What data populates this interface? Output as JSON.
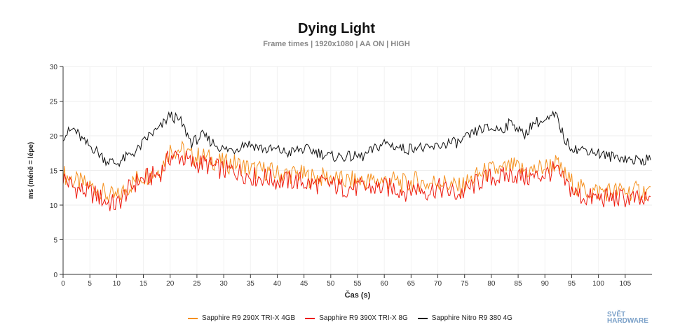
{
  "chart_data": {
    "type": "line",
    "title": "Dying Light",
    "subtitle": "Frame times | 1920x1080 | AA ON | HIGH",
    "xlabel": "Čas (s)",
    "ylabel": "ms (méně = lépe)",
    "xlim": [
      0,
      110
    ],
    "ylim": [
      0,
      30
    ],
    "xticks": [
      0,
      5,
      10,
      15,
      20,
      25,
      30,
      35,
      40,
      45,
      50,
      55,
      60,
      65,
      70,
      75,
      80,
      85,
      90,
      95,
      100,
      105
    ],
    "yticks": [
      0,
      5,
      10,
      15,
      20,
      25,
      30
    ],
    "grid": true,
    "legend_position": "bottom",
    "x": [
      0,
      2,
      4,
      6,
      8,
      10,
      12,
      14,
      16,
      18,
      20,
      22,
      24,
      26,
      28,
      30,
      32,
      34,
      36,
      38,
      40,
      42,
      44,
      46,
      48,
      50,
      52,
      54,
      56,
      58,
      60,
      62,
      64,
      66,
      68,
      70,
      72,
      74,
      76,
      78,
      80,
      82,
      84,
      86,
      88,
      90,
      92,
      94,
      96,
      98,
      100,
      102,
      104,
      106,
      108,
      110
    ],
    "series": [
      {
        "name": "Sapphire R9 290X TRI-X 4GB",
        "color": "#f5901e",
        "values": [
          14.5,
          13.5,
          13,
          12.5,
          11.5,
          11,
          12.5,
          14,
          14.5,
          15,
          18,
          18,
          17,
          17,
          16.5,
          16,
          16,
          15.5,
          15,
          15,
          14.5,
          14.5,
          14.5,
          14,
          14,
          14,
          13.5,
          13.5,
          13.5,
          13.5,
          13.5,
          13.5,
          13,
          13.5,
          13,
          13.5,
          13,
          12.5,
          13.5,
          14.5,
          15,
          15,
          15.5,
          15,
          15,
          15.5,
          16,
          14,
          12.5,
          12,
          12,
          12,
          12,
          12,
          12,
          12
        ]
      },
      {
        "name": "Sapphire R9 390X TRI-X 8G",
        "color": "#ee1c10",
        "values": [
          14,
          12.5,
          12,
          11.5,
          10.5,
          10,
          12,
          13.5,
          14,
          14.5,
          17,
          17,
          16,
          16,
          15.5,
          15,
          15,
          14.5,
          14,
          14,
          13.5,
          13.5,
          13.5,
          13,
          13,
          13,
          12.5,
          12.5,
          12.5,
          12.5,
          12.5,
          12.5,
          12,
          12.5,
          12,
          12.5,
          12,
          11.5,
          12.5,
          13.5,
          14,
          14,
          14.5,
          14,
          14,
          14.5,
          15,
          13,
          11.5,
          11,
          11,
          11,
          11,
          11,
          10.5,
          10.5
        ]
      },
      {
        "name": "Sapphire Nitro R9 380 4G",
        "color": "#111111",
        "values": [
          20,
          21,
          19,
          18,
          16.5,
          16,
          17,
          18,
          20,
          21,
          23,
          22,
          19,
          20,
          19,
          18,
          18,
          19,
          18.5,
          18,
          18,
          17.5,
          18,
          18,
          17.5,
          17,
          17,
          17,
          17,
          18,
          19,
          18.5,
          18,
          18.5,
          18,
          18.5,
          19,
          19,
          20,
          21,
          21,
          21,
          22,
          20,
          22,
          22,
          23,
          19,
          18,
          18,
          17.5,
          17,
          17,
          16.5,
          16.5,
          16.5
        ]
      }
    ]
  },
  "logo": {
    "line1": "SVĚT",
    "line2": "HARDWARE"
  }
}
